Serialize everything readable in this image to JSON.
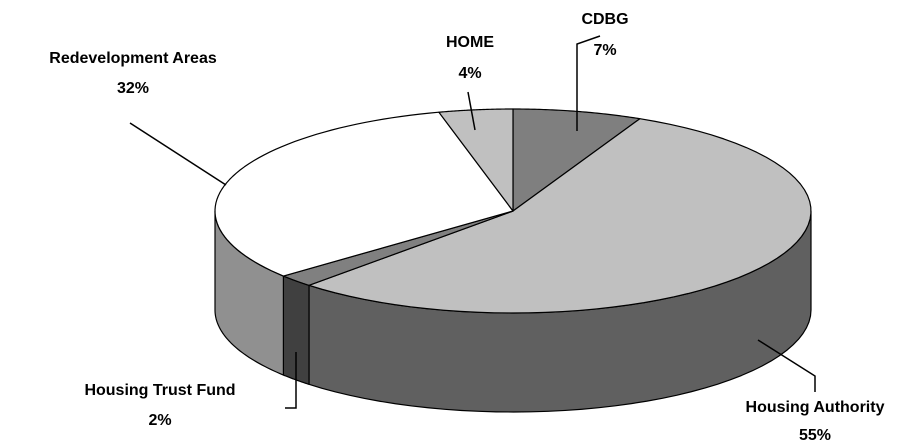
{
  "chart_data": {
    "type": "pie",
    "style": "3d",
    "title": "",
    "slices": [
      {
        "label": "CDBG",
        "value": 7,
        "value_label": "7%",
        "color": "#7f7f7f",
        "side_color": "#5f5f5f"
      },
      {
        "label": "Housing Authority",
        "value": 55,
        "value_label": "55%",
        "color": "#c0c0c0",
        "side_color": "#606060"
      },
      {
        "label": "Housing Trust Fund",
        "value": 2,
        "value_label": "2%",
        "color": "#808080",
        "side_color": "#404040"
      },
      {
        "label": "Redevelopment Areas",
        "value": 32,
        "value_label": "32%",
        "color": "#ffffff",
        "side_color": "#909090"
      },
      {
        "label": "HOME",
        "value": 4,
        "value_label": "4%",
        "color": "#c0c0c0",
        "side_color": "#909090"
      }
    ]
  }
}
